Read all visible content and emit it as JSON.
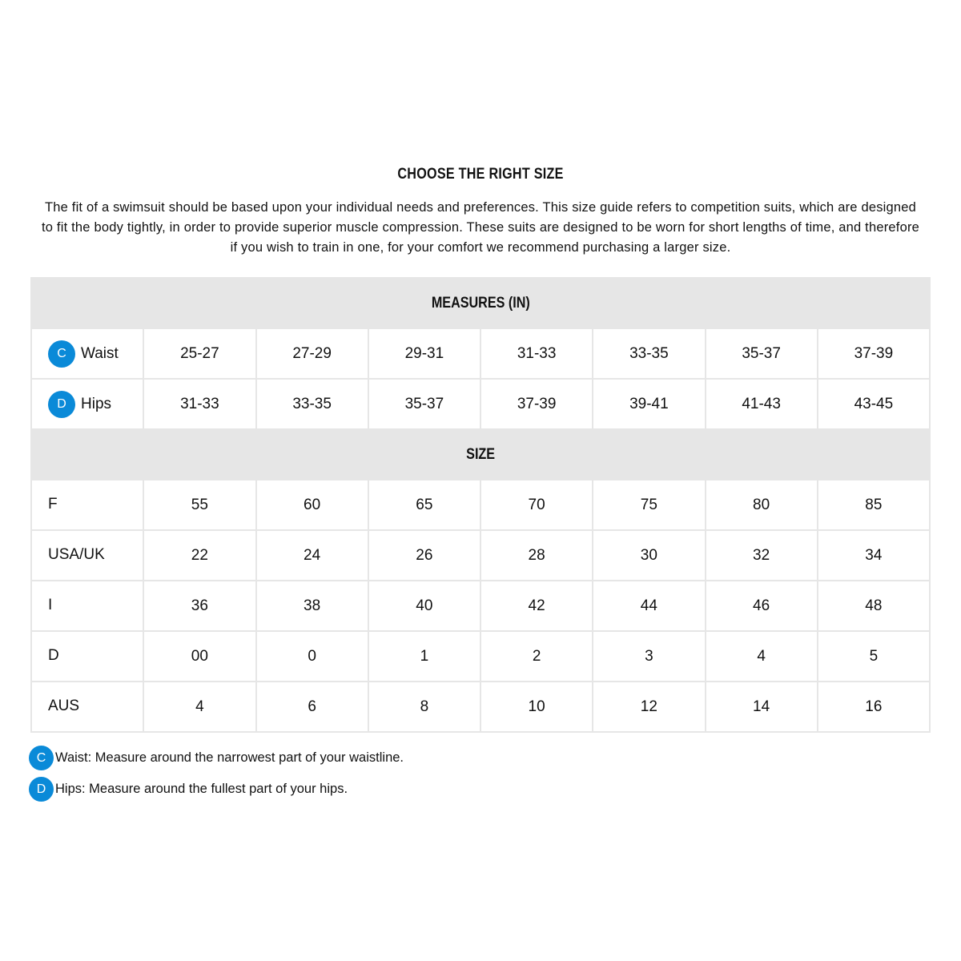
{
  "title": "CHOOSE THE RIGHT SIZE",
  "intro": "The fit of a swimsuit should be based upon your individual needs and preferences. This size guide refers to competition suits, which are designed to fit the body tightly, in order to provide superior muscle compression. These suits are designed to be worn for short lengths of time, and therefore if you wish to train in one, for your comfort we recommend purchasing a larger size.",
  "accent_color": "#0a8ad8",
  "table": [
    {
      "band": "MEASURES (IN)"
    },
    {
      "badge": "C",
      "label": "Waist",
      "values": [
        "25-27",
        "27-29",
        "29-31",
        "31-33",
        "33-35",
        "35-37",
        "37-39"
      ]
    },
    {
      "badge": "D",
      "label": "Hips",
      "values": [
        "31-33",
        "33-35",
        "35-37",
        "37-39",
        "39-41",
        "41-43",
        "43-45"
      ]
    },
    {
      "band": "SIZE"
    },
    {
      "label": "F",
      "values": [
        "55",
        "60",
        "65",
        "70",
        "75",
        "80",
        "85"
      ]
    },
    {
      "label": "USA/UK",
      "values": [
        "22",
        "24",
        "26",
        "28",
        "30",
        "32",
        "34"
      ]
    },
    {
      "label": "I",
      "values": [
        "36",
        "38",
        "40",
        "42",
        "44",
        "46",
        "48"
      ]
    },
    {
      "label": "D",
      "values": [
        "00",
        "0",
        "1",
        "2",
        "3",
        "4",
        "5"
      ]
    },
    {
      "label": "AUS",
      "values": [
        "4",
        "6",
        "8",
        "10",
        "12",
        "14",
        "16"
      ]
    }
  ],
  "notes": [
    {
      "badge": "C",
      "text": "Waist: Measure around the narrowest part of your waistline."
    },
    {
      "badge": "D",
      "text": "Hips: Measure around the fullest part of your hips."
    }
  ]
}
